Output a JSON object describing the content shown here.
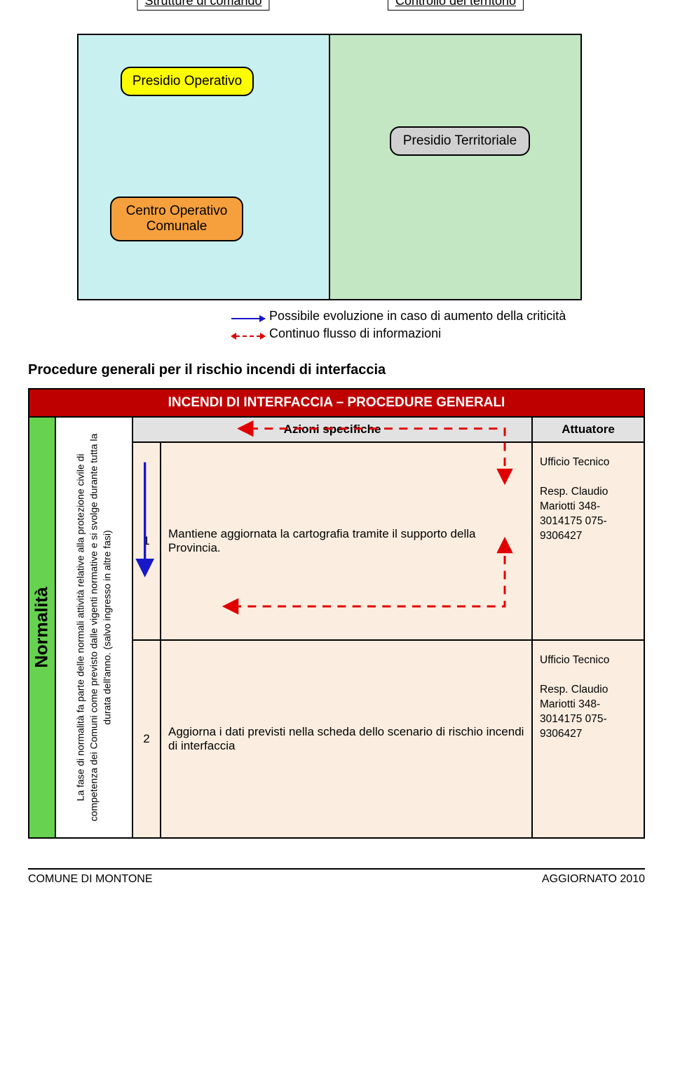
{
  "colors": {
    "col_left_bg": "#c8f0f0",
    "col_right_bg": "#c3e7c3",
    "node_yellow": "#fcfc00",
    "node_orange": "#f6a03d",
    "node_grey": "#d0d0d0",
    "arrow_solid": "#1818c9",
    "arrow_dashed": "#e00000",
    "proc_title_bg": "#bf0000",
    "phase_bg": "#66d24f",
    "action_bg": "#fbeee0"
  },
  "diagram": {
    "col_left_header": "Strutture di comando",
    "col_right_header": "Controllo del territorio",
    "nodes": {
      "presidio_operativo": "Presidio Operativo",
      "centro_operativo": "Centro Operativo Comunale",
      "presidio_territoriale": "Presidio Territoriale"
    },
    "legend_solid": "Possibile evoluzione in caso di aumento della criticità",
    "legend_dashed": "Continuo flusso di informazioni"
  },
  "section_heading": "Procedure generali per il rischio incendi di interfaccia",
  "procedures": {
    "title": "INCENDI DI INTERFACCIA – PROCEDURE GENERALI",
    "phase_label": "Normalità",
    "phase_description": "La fase di normalità fa parte delle normali attività relative alla protezione civile di competenza dei Comuni come previsto dalle vigenti normative e si svolge durante tutta la durata dell'anno. (salvo ingresso in altre fasi)",
    "header_main": "Azioni specifiche",
    "header_attuatore": "Attuatore",
    "actions": [
      {
        "num": "1",
        "text": "Mantiene aggiornata la cartografia tramite il supporto della Provincia.",
        "attuatore": "Ufficio Tecnico\n\nResp. Claudio Mariotti 348-3014175 075-9306427"
      },
      {
        "num": "2",
        "text": "Aggiorna i dati previsti nella scheda dello scenario di rischio incendi di interfaccia",
        "attuatore": "Ufficio Tecnico\n\nResp. Claudio Mariotti 348-3014175 075-9306427"
      }
    ]
  },
  "footer": {
    "left": "COMUNE DI MONTONE",
    "right": "AGGIORNATO 2010"
  }
}
